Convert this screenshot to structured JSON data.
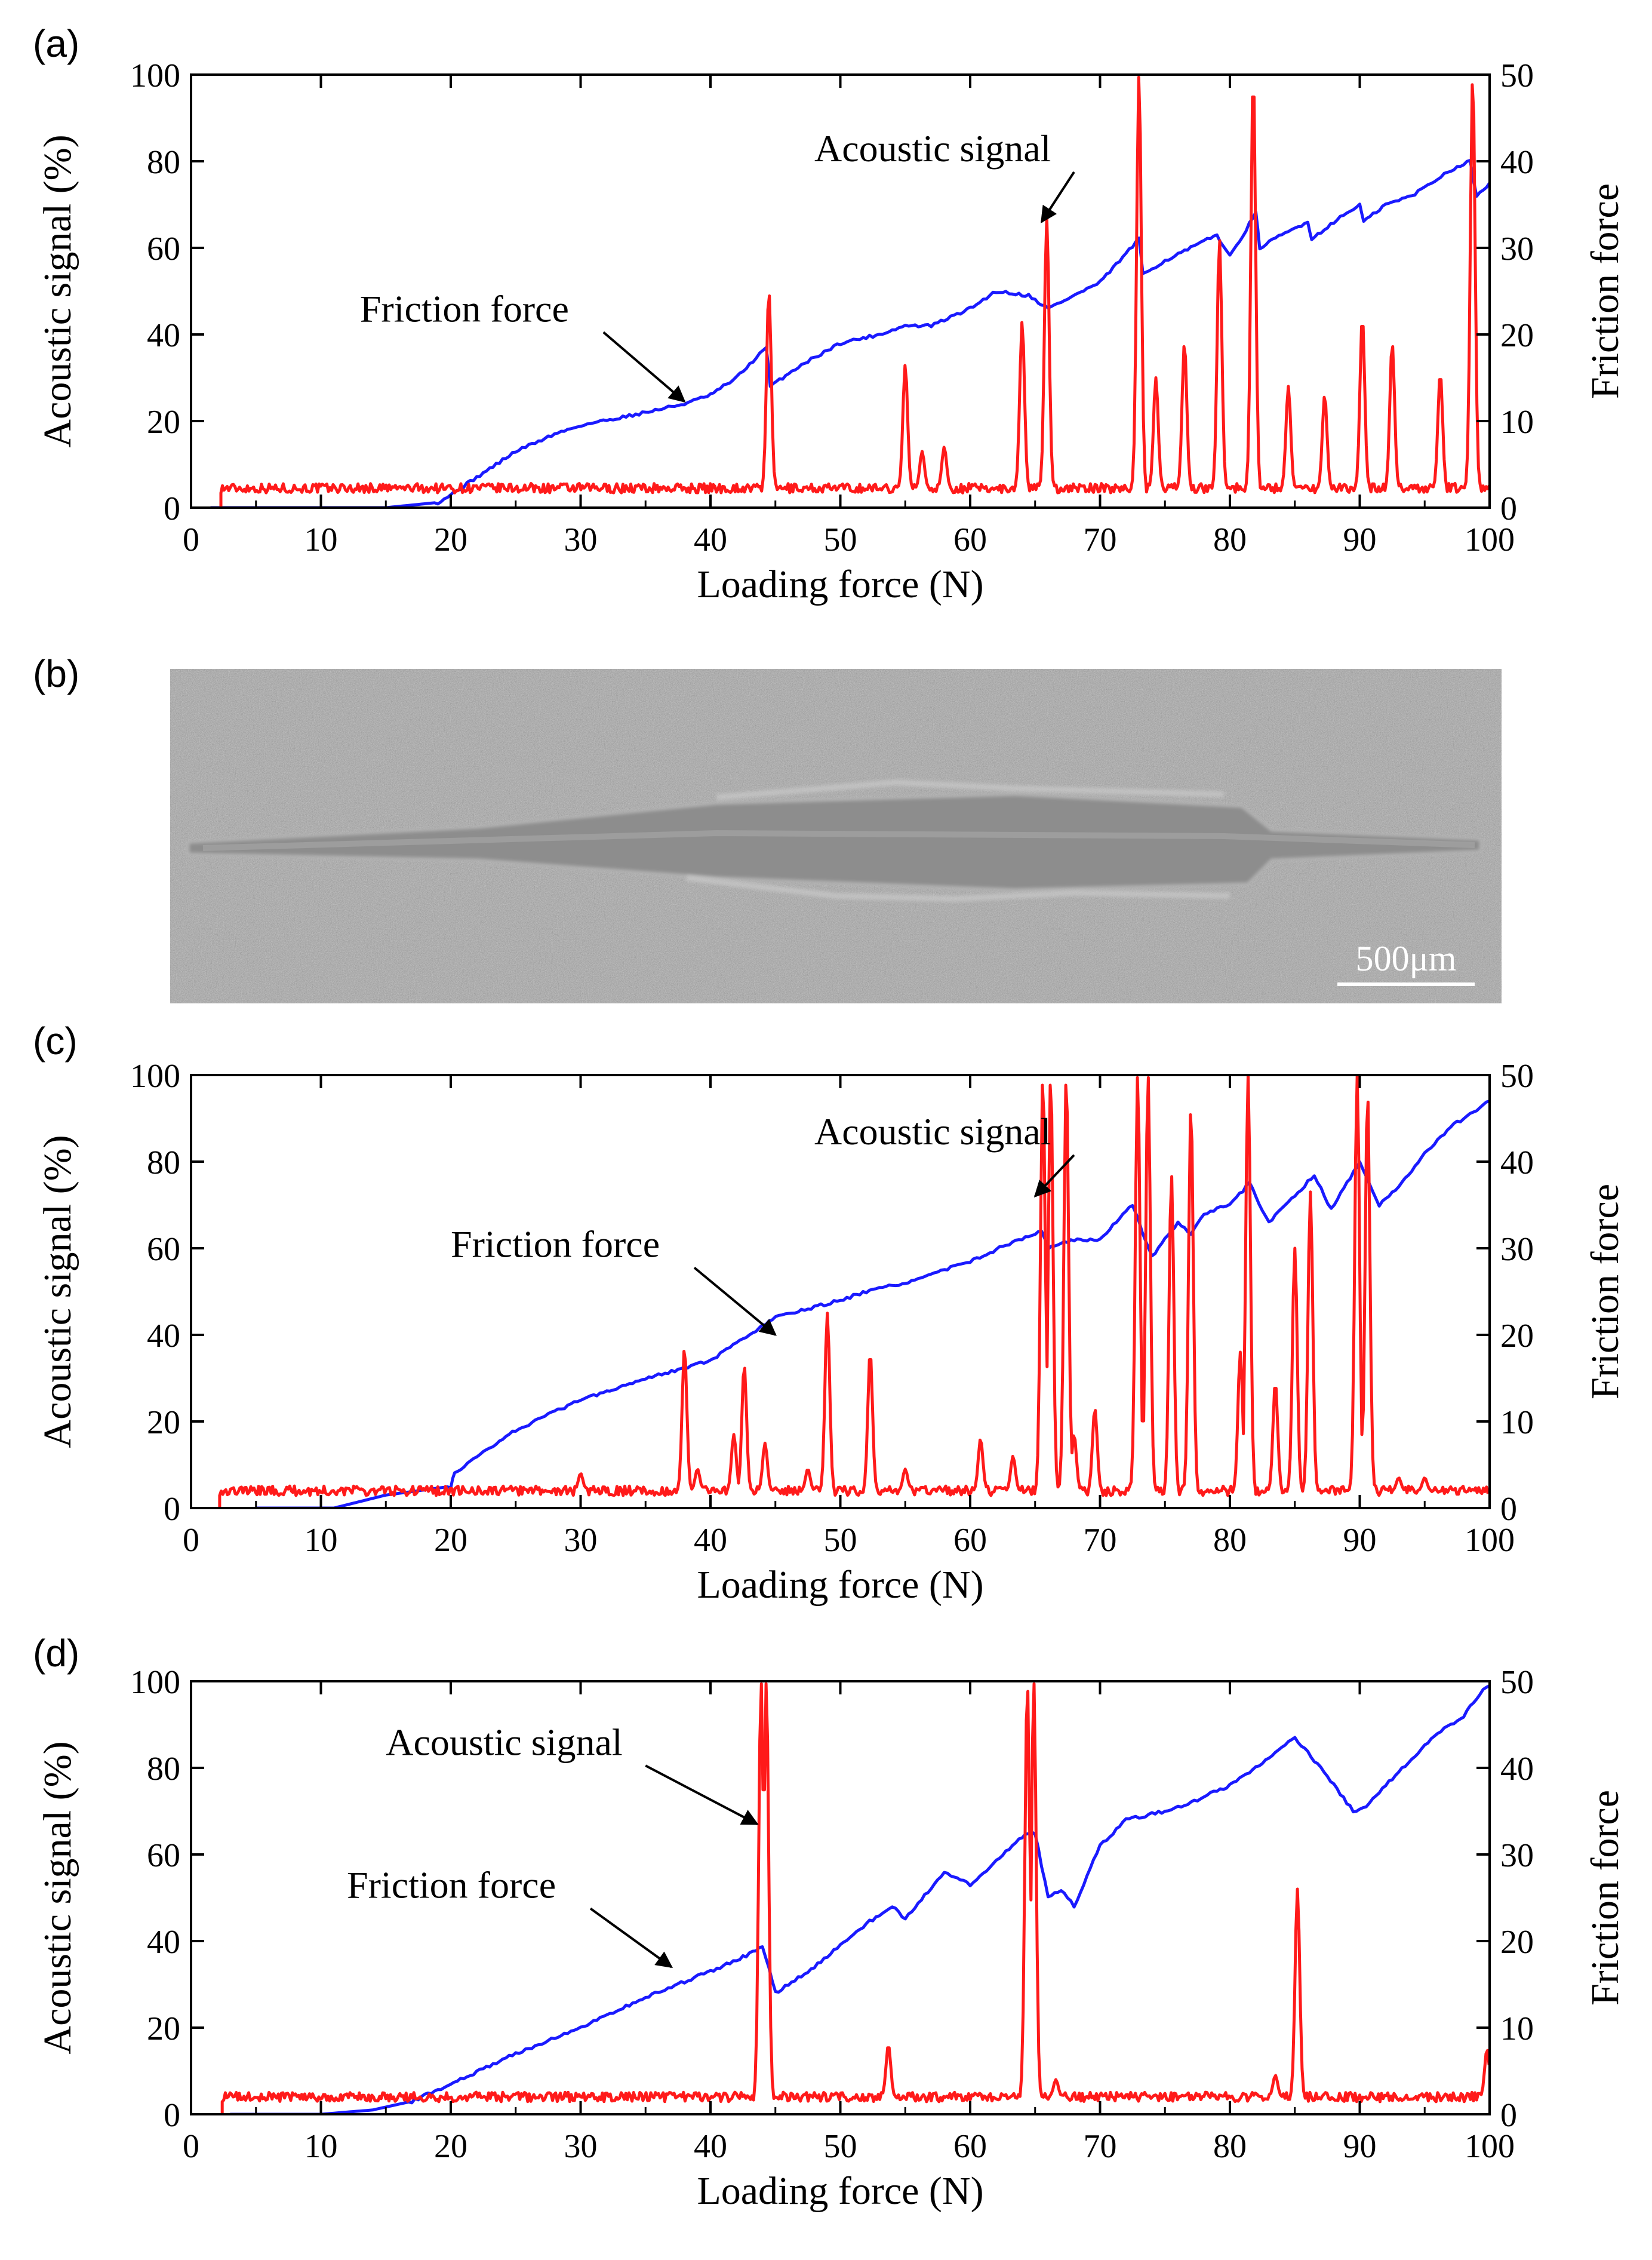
{
  "chart_data": [
    {
      "type": "line",
      "panel_label": "(a)",
      "xlabel": "Loading force (N)",
      "ylabel": "Acoustic signal (%)",
      "y2label": "Friction force",
      "xlim": [
        0,
        100
      ],
      "ylim": [
        0,
        100
      ],
      "y2lim": [
        0,
        50
      ],
      "xticks": [
        0,
        10,
        20,
        30,
        40,
        50,
        60,
        70,
        80,
        90,
        100
      ],
      "yticks": [
        0,
        20,
        40,
        60,
        80,
        100
      ],
      "y2ticks": [
        0,
        10,
        20,
        30,
        40,
        50
      ],
      "series": [
        {
          "name": "Friction force",
          "color": "#1a1aff",
          "axis": "right",
          "x": [
            1.5,
            10,
            15,
            19,
            20,
            22,
            25,
            28,
            30,
            35,
            38,
            40,
            42,
            44.3,
            44.6,
            47,
            50,
            53,
            55,
            57,
            60,
            62,
            64.5,
            66,
            68,
            70,
            73,
            73.3,
            75,
            77,
            79,
            80,
            82,
            82.3,
            84,
            86,
            86.3,
            88,
            90,
            90.3,
            92,
            94,
            96,
            97,
            98.5,
            99,
            100
          ],
          "y": [
            0,
            0,
            0,
            0.6,
            1.5,
            3.5,
            6.5,
            8.5,
            9.5,
            11,
            12,
            13,
            15,
            18.5,
            14,
            16.5,
            19,
            20,
            21,
            21,
            23,
            25,
            24.5,
            23,
            24.5,
            26,
            31,
            27,
            28.5,
            30,
            31.5,
            29,
            34,
            30,
            31.5,
            33,
            31,
            33,
            35,
            33,
            35,
            36,
            38,
            39,
            40,
            36,
            37.5
          ]
        },
        {
          "name": "Acoustic signal",
          "color": "#ff1a1a",
          "axis": "left",
          "baseline": 4.5,
          "start": 2.3,
          "peaks": [
            [
              44.5,
              50
            ],
            [
              55,
              33
            ],
            [
              56.3,
              13
            ],
            [
              58,
              14
            ],
            [
              64,
              43
            ],
            [
              65.9,
              67
            ],
            [
              73,
              100
            ],
            [
              74.3,
              30
            ],
            [
              76.5,
              38
            ],
            [
              79.2,
              62
            ],
            [
              81.8,
              100
            ],
            [
              84.5,
              28
            ],
            [
              87.3,
              26
            ],
            [
              90.2,
              44
            ],
            [
              92.5,
              38
            ],
            [
              96.2,
              31
            ],
            [
              98.7,
              100
            ]
          ]
        }
      ],
      "annotations": [
        {
          "text": "Acoustic signal",
          "x": 48,
          "y": 80,
          "arrow_to": [
            65.5,
            66
          ]
        },
        {
          "text": "Friction force",
          "x": 13,
          "y": 43,
          "arrow_to": [
            38,
            24.5
          ]
        }
      ]
    },
    {
      "type": "line",
      "panel_label": "(c)",
      "xlabel": "Loading force (N)",
      "ylabel": "Acoustic signal (%)",
      "y2label": "Friction force",
      "xlim": [
        0,
        100
      ],
      "ylim": [
        0,
        100
      ],
      "y2lim": [
        0,
        50
      ],
      "xticks": [
        0,
        10,
        20,
        30,
        40,
        50,
        60,
        70,
        80,
        90,
        100
      ],
      "yticks": [
        0,
        20,
        40,
        60,
        80,
        100
      ],
      "y2ticks": [
        0,
        10,
        20,
        30,
        40,
        50
      ],
      "series": [
        {
          "name": "Friction force",
          "color": "#1a1aff",
          "axis": "right",
          "x": [
            5,
            11,
            15,
            20,
            20.3,
            23,
            25,
            30,
            35,
            40,
            45,
            50,
            52,
            55,
            60,
            63,
            65.5,
            66,
            68,
            70,
            72.5,
            74,
            76,
            77,
            78,
            80,
            81.5,
            83,
            85,
            86.5,
            87.8,
            90,
            91.5,
            93,
            95,
            97,
            100
          ],
          "y": [
            0,
            0,
            1.5,
            2.5,
            4,
            7,
            9,
            12.5,
            15,
            17,
            22,
            24,
            25,
            26,
            28.5,
            30.5,
            32,
            30,
            31,
            31,
            35,
            29,
            33,
            31.5,
            34,
            35,
            37.5,
            33,
            36,
            38.5,
            34.5,
            40,
            35,
            37,
            41,
            44,
            47
          ]
        },
        {
          "name": "Acoustic signal",
          "color": "#ff1a1a",
          "axis": "left",
          "baseline": 4,
          "start": 2.2,
          "peaks": [
            [
              30,
              8
            ],
            [
              38,
              37
            ],
            [
              39,
              9
            ],
            [
              41.8,
              17
            ],
            [
              42.6,
              33
            ],
            [
              44.2,
              15
            ],
            [
              47.5,
              9
            ],
            [
              49,
              45
            ],
            [
              52.3,
              36
            ],
            [
              55,
              9
            ],
            [
              60.8,
              16
            ],
            [
              63.3,
              12
            ],
            [
              65.6,
              100
            ],
            [
              66.2,
              100
            ],
            [
              67.4,
              100
            ],
            [
              68,
              17
            ],
            [
              69.6,
              23
            ],
            [
              72.9,
              100
            ],
            [
              73.7,
              100
            ],
            [
              75.5,
              77
            ],
            [
              77,
              93
            ],
            [
              80.8,
              36
            ],
            [
              81.4,
              100
            ],
            [
              83.5,
              29
            ],
            [
              85,
              60
            ],
            [
              86.2,
              73
            ],
            [
              89.8,
              100
            ],
            [
              90.6,
              96
            ],
            [
              93,
              7
            ],
            [
              95,
              7
            ]
          ]
        }
      ],
      "annotations": [
        {
          "text": "Acoustic signal",
          "x": 48,
          "y": 84,
          "arrow_to": [
            65,
            72
          ]
        },
        {
          "text": "Friction force",
          "x": 20,
          "y": 58,
          "arrow_to": [
            45,
            40
          ]
        }
      ]
    },
    {
      "type": "line",
      "panel_label": "(d)",
      "xlabel": "Loading force (N)",
      "ylabel": "Acoustic signal (%)",
      "y2label": "Friction force",
      "xlim": [
        0,
        100
      ],
      "ylim": [
        0,
        100
      ],
      "y2lim": [
        0,
        50
      ],
      "xticks": [
        0,
        10,
        20,
        30,
        40,
        50,
        60,
        70,
        80,
        90,
        100
      ],
      "yticks": [
        0,
        20,
        40,
        60,
        80,
        100
      ],
      "y2ticks": [
        0,
        10,
        20,
        30,
        40,
        50
      ],
      "series": [
        {
          "name": "Friction force",
          "color": "#1a1aff",
          "axis": "right",
          "x": [
            3,
            10,
            14,
            17,
            20,
            25,
            30,
            35,
            40,
            43,
            44,
            45,
            48,
            52,
            54,
            55,
            58,
            60,
            64,
            64.5,
            65,
            66,
            67,
            68,
            70,
            72,
            75,
            77,
            80,
            82,
            85,
            87,
            89.5,
            90.5,
            92,
            94,
            96,
            98,
            99.5,
            100
          ],
          "y": [
            0,
            0,
            0.5,
            1.5,
            3.5,
            7,
            10,
            13.5,
            16.5,
            18.5,
            19.5,
            14,
            17,
            22,
            24,
            22.5,
            28,
            26.5,
            32,
            32.5,
            32.5,
            25,
            26,
            24,
            31,
            34,
            35,
            36,
            38,
            40,
            43.5,
            40,
            35,
            35.5,
            38,
            41,
            44,
            46,
            49,
            49.5
          ]
        },
        {
          "name": "Acoustic signal",
          "color": "#ff1a1a",
          "axis": "left",
          "baseline": 4,
          "start": 2.4,
          "peaks": [
            [
              43.9,
              100
            ],
            [
              44.3,
              100
            ],
            [
              53.7,
              16
            ],
            [
              64.4,
              100
            ],
            [
              64.9,
              100
            ],
            [
              66.6,
              8
            ],
            [
              83.5,
              9
            ],
            [
              85.2,
              52
            ],
            [
              99.8,
              15
            ]
          ]
        }
      ],
      "annotations": [
        {
          "text": "Acoustic signal",
          "x": 15,
          "y": 83,
          "arrow_to": [
            43.6,
            67
          ]
        },
        {
          "text": "Friction force",
          "x": 12,
          "y": 50,
          "arrow_to": [
            37,
            34
          ]
        }
      ]
    }
  ],
  "micrograph": {
    "panel_label": "(b)",
    "scale_bar_label": "500μm"
  }
}
